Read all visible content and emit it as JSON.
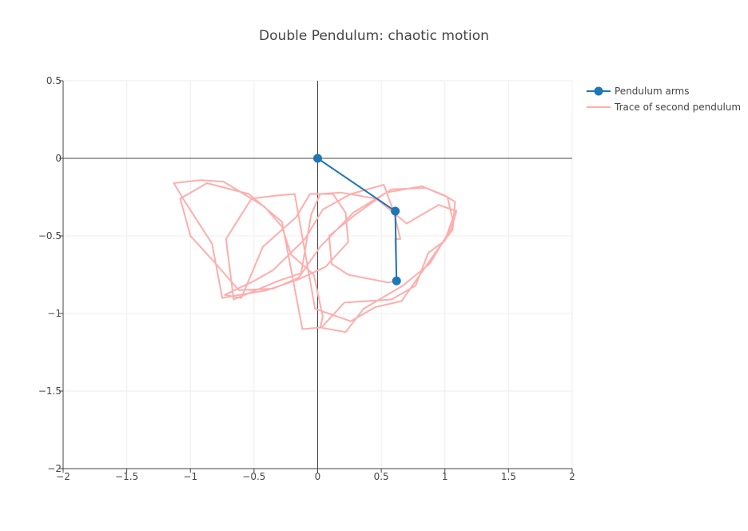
{
  "chart_data": {
    "type": "line",
    "title": "Double Pendulum: chaotic motion",
    "xlim": [
      -2,
      2
    ],
    "ylim": [
      -2,
      0.5
    ],
    "x_ticks": [
      -2,
      -1.5,
      -1,
      -0.5,
      0,
      0.5,
      1,
      1.5,
      2
    ],
    "x_tick_labels": [
      "−2",
      "−1.5",
      "−1",
      "−0.5",
      "0",
      "0.5",
      "1",
      "1.5",
      "2"
    ],
    "y_ticks": [
      0.5,
      0,
      -0.5,
      -1,
      -1.5,
      -2
    ],
    "y_tick_labels": [
      "0.5",
      "0",
      "−0.5",
      "−1",
      "−1.5",
      "−2"
    ],
    "grid": true,
    "legend_position": "top-right",
    "series": [
      {
        "name": "Pendulum arms",
        "color": "#1f77b4",
        "mode": "lines+markers",
        "x": [
          0,
          0.61,
          0.62
        ],
        "y": [
          0,
          -0.34,
          -0.79
        ]
      },
      {
        "name": "Trace of second pendulum",
        "color": "#ffadad",
        "mode": "lines",
        "x": [
          0.62,
          0.61,
          0.65,
          0.6,
          0.52,
          0.26,
          0.04,
          -0.1,
          -0.35,
          -0.5,
          -0.73,
          -0.6,
          -0.43,
          -0.17,
          -0.06,
          0.12,
          0.22,
          0.24,
          0.06,
          -0.15,
          -0.4,
          -0.75,
          -0.83,
          -1.05,
          -1.13,
          -0.92,
          -0.74,
          -0.42,
          -0.28,
          -0.21,
          -0.03,
          0.04,
          0.02,
          0.22,
          0.36,
          0.67,
          0.88,
          1.05,
          1.09,
          0.95,
          0.7,
          0.46,
          0.18,
          0.02,
          -0.05,
          -0.13,
          -0.31,
          -0.66,
          -0.72,
          -0.52,
          -0.33,
          -0.18,
          -0.02,
          0.26,
          0.45,
          0.66,
          0.94,
          1.06,
          1.08,
          1.0,
          0.85,
          0.58,
          0.28,
          0.02,
          -0.15,
          -0.35,
          -0.62,
          -0.81,
          -1.0,
          -1.08,
          -0.87,
          -0.54,
          -0.28,
          -0.12,
          0.03,
          0.21,
          0.58,
          0.77,
          0.87,
          1.0,
          1.06,
          1.02,
          0.82,
          0.54,
          0.3,
          0.09,
          0.11,
          0.24,
          0.55,
          0.64
        ],
        "y": [
          -0.79,
          -0.52,
          -0.52,
          -0.35,
          -0.17,
          -0.23,
          -0.33,
          -0.52,
          -0.72,
          -0.79,
          -0.88,
          -0.9,
          -0.57,
          -0.38,
          -0.23,
          -0.23,
          -0.35,
          -0.54,
          -0.7,
          -0.78,
          -0.85,
          -0.9,
          -0.55,
          -0.27,
          -0.16,
          -0.14,
          -0.15,
          -0.31,
          -0.44,
          -0.62,
          -0.75,
          -1.02,
          -1.09,
          -1.12,
          -0.97,
          -0.82,
          -0.68,
          -0.45,
          -0.34,
          -0.3,
          -0.42,
          -0.26,
          -0.22,
          -0.23,
          -0.36,
          -0.74,
          -0.79,
          -0.91,
          -0.52,
          -0.26,
          -0.24,
          -0.23,
          -0.97,
          -1.05,
          -0.96,
          -0.92,
          -0.59,
          -0.46,
          -0.28,
          -0.24,
          -0.19,
          -0.2,
          -0.35,
          -0.57,
          -0.77,
          -0.84,
          -0.85,
          -0.67,
          -0.5,
          -0.26,
          -0.16,
          -0.23,
          -0.41,
          -1.1,
          -1.09,
          -0.93,
          -0.91,
          -0.82,
          -0.61,
          -0.53,
          -0.39,
          -0.25,
          -0.18,
          -0.22,
          -0.36,
          -0.5,
          -0.68,
          -0.75,
          -0.8,
          -0.79
        ]
      }
    ]
  }
}
